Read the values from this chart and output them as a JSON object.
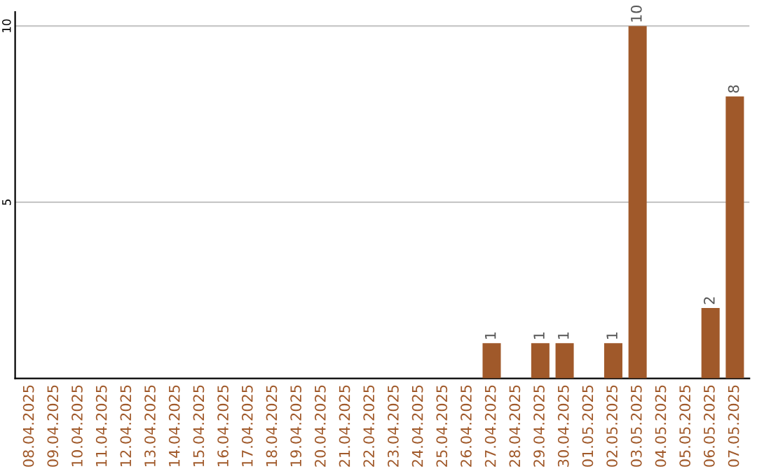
{
  "chart_data": {
    "type": "bar",
    "categories": [
      "08.04.2025",
      "09.04.2025",
      "10.04.2025",
      "11.04.2025",
      "12.04.2025",
      "13.04.2025",
      "14.04.2025",
      "15.04.2025",
      "16.04.2025",
      "17.04.2025",
      "18.04.2025",
      "19.04.2025",
      "20.04.2025",
      "21.04.2025",
      "22.04.2025",
      "23.04.2025",
      "24.04.2025",
      "25.04.2025",
      "26.04.2025",
      "27.04.2025",
      "28.04.2025",
      "29.04.2025",
      "30.04.2025",
      "01.05.2025",
      "02.05.2025",
      "03.05.2025",
      "04.05.2025",
      "05.05.2025",
      "06.05.2025",
      "07.05.2025"
    ],
    "values": [
      0,
      0,
      0,
      0,
      0,
      0,
      0,
      0,
      0,
      0,
      0,
      0,
      0,
      0,
      0,
      0,
      0,
      0,
      0,
      1,
      0,
      1,
      1,
      0,
      1,
      10,
      0,
      0,
      2,
      8
    ],
    "value_labels": [
      null,
      null,
      null,
      null,
      null,
      null,
      null,
      null,
      null,
      null,
      null,
      null,
      null,
      null,
      null,
      null,
      null,
      null,
      null,
      "1",
      null,
      "1",
      "1",
      null,
      "1",
      "10",
      null,
      null,
      "2",
      "8"
    ],
    "color": "#a0592a",
    "ylim": [
      0,
      10.4
    ],
    "yticks": [
      5,
      10
    ],
    "grid": "y"
  }
}
